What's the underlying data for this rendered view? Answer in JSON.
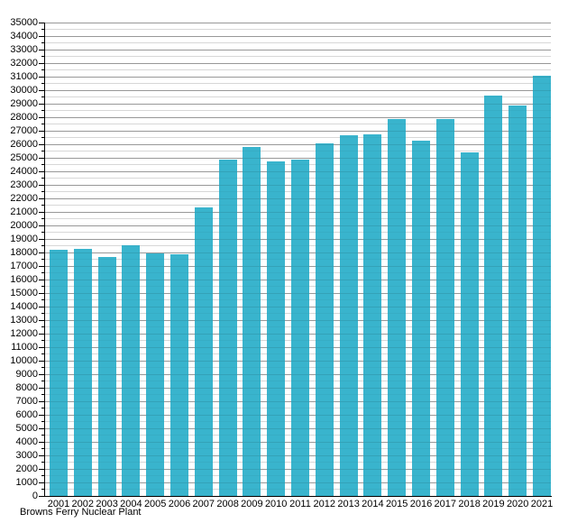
{
  "chart_data": {
    "type": "bar",
    "title": "",
    "caption": "Browns Ferry Nuclear Plant",
    "categories": [
      "2001",
      "2002",
      "2003",
      "2004",
      "2005",
      "2006",
      "2007",
      "2008",
      "2009",
      "2010",
      "2011",
      "2012",
      "2013",
      "2014",
      "2015",
      "2016",
      "2017",
      "2018",
      "2019",
      "2020",
      "2021"
    ],
    "values": [
      18200,
      18250,
      17700,
      18550,
      17950,
      17900,
      21350,
      24900,
      25800,
      24750,
      24850,
      26100,
      26700,
      26750,
      27850,
      26250,
      27900,
      25400,
      29600,
      28850,
      31100
    ],
    "ylim": [
      0,
      35000
    ],
    "y_tick_step": 1000,
    "y_minor_tick_step": 500,
    "y_tick_labels": [
      "0",
      "1000",
      "2000",
      "3000",
      "4000",
      "5000",
      "6000",
      "7000",
      "8000",
      "9000",
      "10000",
      "11000",
      "12000",
      "13000",
      "14000",
      "15000",
      "16000",
      "17000",
      "18000",
      "19000",
      "20000",
      "21000",
      "22000",
      "23000",
      "24000",
      "25000",
      "26000",
      "27000",
      "28000",
      "29000",
      "30000",
      "31000",
      "32000",
      "33000",
      "34000",
      "35000"
    ],
    "xlabel": "",
    "ylabel": "",
    "grid": "on",
    "legend": "none",
    "bar_color": "#39b4cd"
  },
  "colors": {
    "bar": "#39b4cd",
    "major_gridline": "#a9a9a9",
    "minor_gridline": "#e0e0e0",
    "axis": "#000000",
    "text": "#000000",
    "background": "#ffffff"
  }
}
